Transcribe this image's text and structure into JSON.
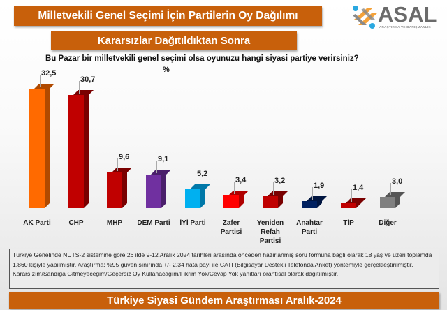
{
  "header": {
    "title": "Milletvekili Genel Seçimi İçin Partilerin Oy Dağılımı",
    "subtitle": "Kararsızlar Dağıtıldıktan Sonra",
    "logo_word": "ASAL",
    "logo_sub": "ARAŞTIRMA VE DANIŞMANLIK"
  },
  "question": "Bu Pazar bir milletvekili genel seçimi olsa oyunuzu hangi siyasi partiye verirsiniz?",
  "unit": "%",
  "note": "Türkiye Genelinde NUTS-2 sistemine göre 26 ilde 9-12 Aralık 2024 tarihleri arasında önceden hazırlanmış soru formuna bağlı olarak 18 yaş ve üzeri toplamda 1.860 kişiyle yapılmıştır. Araştırma; %95 güven sınırında +/- 2.34 hata payı ile CATI (Bilgisayar Destekli Telefonda Anket) yöntemiyle gerçekleştirilmiştir. Kararsızım/Sandığa Gitmeyeceğim/Geçersiz Oy Kullanacağım/Fikrim Yok/Cevap Yok yanıtları orantısal olarak dağıtılmıştır.",
  "footer": "Türkiye Siyasi Gündem Araştırması Aralık-2024",
  "colors": {
    "banner": "#c8600b"
  },
  "chart_data": {
    "type": "bar",
    "title": "Milletvekili Genel Seçimi İçin Partilerin Oy Dağılımı",
    "subtitle": "Kararsızlar Dağıtıldıktan Sonra",
    "ylabel": "%",
    "xlabel": "",
    "grid": false,
    "legend": null,
    "categories": [
      "AK Parti",
      "CHP",
      "MHP",
      "DEM Parti",
      "İYİ Parti",
      "Zafer Partisi",
      "Yeniden Refah Partisi",
      "Anahtar Parti",
      "TİP",
      "Diğer"
    ],
    "values": [
      32.5,
      30.7,
      9.6,
      9.1,
      5.2,
      3.4,
      3.2,
      1.9,
      1.4,
      3.0
    ],
    "value_labels": [
      "32,5",
      "30,7",
      "9,6",
      "9,1",
      "5,2",
      "3,4",
      "3,2",
      "1,9",
      "1,4",
      "3,0"
    ],
    "display_labels": [
      "AK Parti",
      "CHP",
      "MHP",
      "DEM Parti",
      "İYİ Parti",
      "Zafer\nPartisi",
      "Yeniden\nRefah\nPartisi",
      "Anahtar\nParti",
      "TİP",
      "Diğer"
    ],
    "bar_colors": [
      "#ff6a00",
      "#c00000",
      "#c00000",
      "#7030a0",
      "#00b0f0",
      "#ff0000",
      "#c00000",
      "#002060",
      "#c00000",
      "#808080"
    ],
    "bar_side_colors": [
      "#b04a00",
      "#7a0000",
      "#7a0000",
      "#4a1f6b",
      "#0078a8",
      "#b00000",
      "#7a0000",
      "#001540",
      "#7a0000",
      "#555555"
    ]
  }
}
